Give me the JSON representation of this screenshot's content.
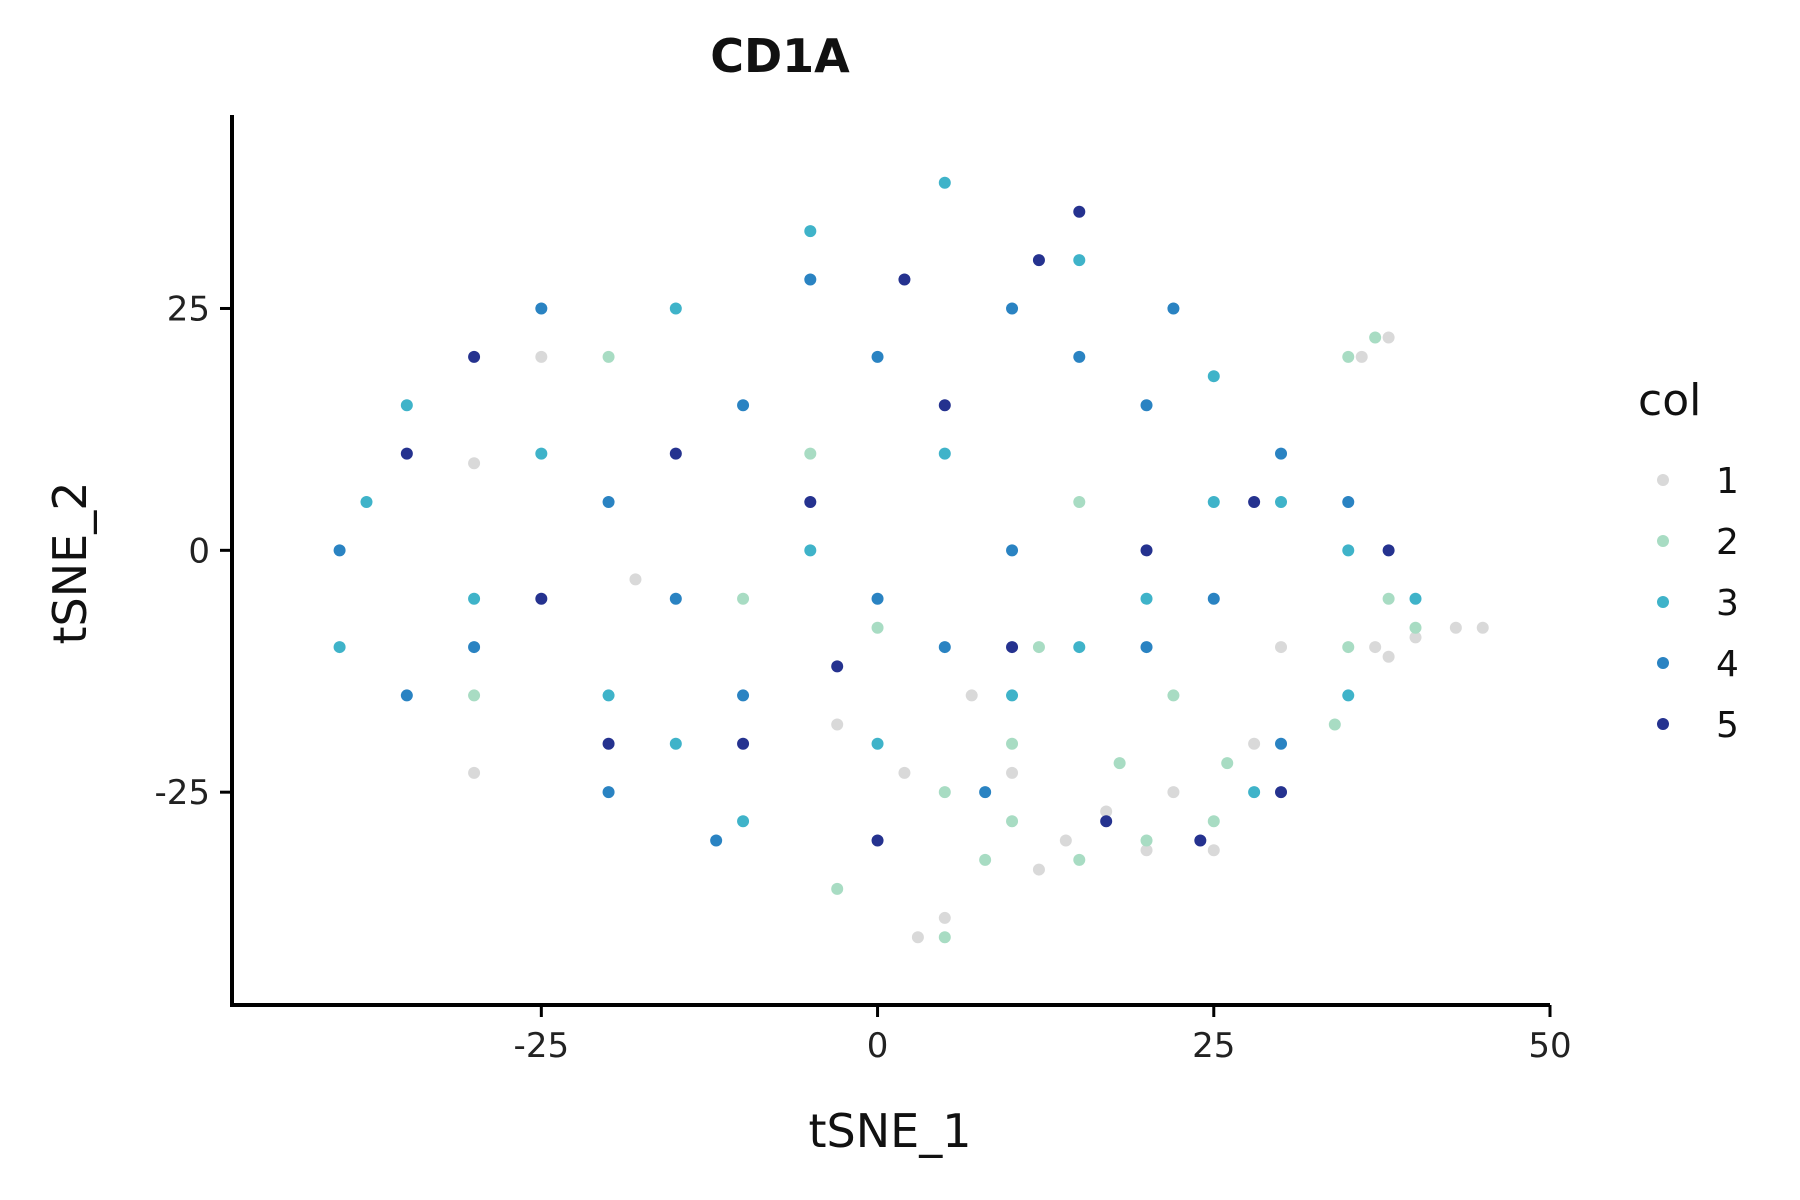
{
  "chart_data": {
    "type": "scatter",
    "title": "CD1A",
    "xlabel": "tSNE_1",
    "ylabel": "tSNE_2",
    "xlim": [
      -48,
      50
    ],
    "ylim": [
      -47,
      45
    ],
    "x_ticks": [
      -25,
      0,
      25,
      50
    ],
    "y_ticks": [
      -25,
      0,
      25
    ],
    "x_tick_labels": [
      "-25",
      "0",
      "25",
      "50"
    ],
    "y_tick_labels": [
      "-25",
      "0",
      "25"
    ],
    "grid": false,
    "legend": {
      "title": "col",
      "placement": "right",
      "entries": [
        {
          "label": "1",
          "color": "#d9d9d9"
        },
        {
          "label": "2",
          "color": "#a8dcc3"
        },
        {
          "label": "3",
          "color": "#3fb3c9"
        },
        {
          "label": "4",
          "color": "#2a83c2"
        },
        {
          "label": "5",
          "color": "#25328f"
        }
      ]
    },
    "series": [
      {
        "name": "1",
        "color": "#d9d9d9",
        "points": [
          [
            43,
            -8
          ],
          [
            45,
            -8
          ],
          [
            40,
            -9
          ],
          [
            37,
            -10
          ],
          [
            38,
            22
          ],
          [
            36,
            20
          ],
          [
            3,
            -40
          ],
          [
            5,
            -38
          ],
          [
            20,
            -31
          ],
          [
            14,
            -30
          ],
          [
            -30,
            -23
          ],
          [
            10,
            -23
          ],
          [
            25,
            -31
          ],
          [
            28,
            -20
          ],
          [
            17,
            -27
          ],
          [
            -3,
            -18
          ],
          [
            2,
            -23
          ],
          [
            -30,
            9
          ],
          [
            -25,
            20
          ],
          [
            38,
            -11
          ],
          [
            7,
            -15
          ],
          [
            -18,
            -3
          ],
          [
            30,
            -10
          ],
          [
            12,
            -33
          ],
          [
            22,
            -25
          ]
        ]
      },
      {
        "name": "2",
        "color": "#a8dcc3",
        "points": [
          [
            5,
            -25
          ],
          [
            10,
            -28
          ],
          [
            15,
            -32
          ],
          [
            20,
            -30
          ],
          [
            25,
            -28
          ],
          [
            35,
            -10
          ],
          [
            38,
            -5
          ],
          [
            40,
            -8
          ],
          [
            35,
            20
          ],
          [
            37,
            22
          ],
          [
            -3,
            -35
          ],
          [
            5,
            -40
          ],
          [
            10,
            -20
          ],
          [
            18,
            -22
          ],
          [
            22,
            -15
          ],
          [
            -30,
            -15
          ],
          [
            -20,
            20
          ],
          [
            -5,
            10
          ],
          [
            15,
            5
          ],
          [
            26,
            -22
          ],
          [
            -10,
            -5
          ],
          [
            0,
            -8
          ],
          [
            34,
            -18
          ],
          [
            12,
            -10
          ],
          [
            8,
            -32
          ]
        ]
      },
      {
        "name": "3",
        "color": "#3fb3c9",
        "points": [
          [
            -25,
            10
          ],
          [
            -15,
            25
          ],
          [
            -5,
            33
          ],
          [
            5,
            38
          ],
          [
            15,
            30
          ],
          [
            25,
            18
          ],
          [
            30,
            5
          ],
          [
            35,
            0
          ],
          [
            40,
            -5
          ],
          [
            -40,
            -10
          ],
          [
            -38,
            5
          ],
          [
            -30,
            -5
          ],
          [
            -20,
            -15
          ],
          [
            -10,
            -28
          ],
          [
            0,
            -20
          ],
          [
            10,
            -15
          ],
          [
            20,
            -5
          ],
          [
            28,
            -25
          ],
          [
            35,
            -15
          ],
          [
            -35,
            15
          ],
          [
            -5,
            0
          ],
          [
            5,
            10
          ],
          [
            15,
            -10
          ],
          [
            -15,
            -20
          ],
          [
            25,
            5
          ]
        ]
      },
      {
        "name": "4",
        "color": "#2a83c2",
        "points": [
          [
            -20,
            5
          ],
          [
            -10,
            15
          ],
          [
            0,
            20
          ],
          [
            10,
            25
          ],
          [
            20,
            15
          ],
          [
            30,
            10
          ],
          [
            -30,
            -10
          ],
          [
            -20,
            -25
          ],
          [
            -10,
            -15
          ],
          [
            0,
            -5
          ],
          [
            10,
            0
          ],
          [
            20,
            -10
          ],
          [
            30,
            -20
          ],
          [
            -40,
            0
          ],
          [
            -35,
            -15
          ],
          [
            -25,
            25
          ],
          [
            -15,
            -5
          ],
          [
            -5,
            28
          ],
          [
            5,
            -10
          ],
          [
            15,
            20
          ],
          [
            25,
            -5
          ],
          [
            35,
            5
          ],
          [
            -12,
            -30
          ],
          [
            22,
            25
          ],
          [
            8,
            -25
          ]
        ]
      },
      {
        "name": "5",
        "color": "#25328f",
        "points": [
          [
            -15,
            10
          ],
          [
            -5,
            5
          ],
          [
            5,
            15
          ],
          [
            15,
            35
          ],
          [
            -25,
            -5
          ],
          [
            -10,
            -20
          ],
          [
            0,
            -30
          ],
          [
            10,
            -10
          ],
          [
            20,
            0
          ],
          [
            30,
            -25
          ],
          [
            -30,
            20
          ],
          [
            -35,
            10
          ],
          [
            12,
            30
          ],
          [
            -3,
            -12
          ],
          [
            17,
            -28
          ],
          [
            24,
            -30
          ],
          [
            -20,
            -20
          ],
          [
            2,
            28
          ],
          [
            28,
            5
          ],
          [
            38,
            0
          ]
        ]
      }
    ]
  }
}
